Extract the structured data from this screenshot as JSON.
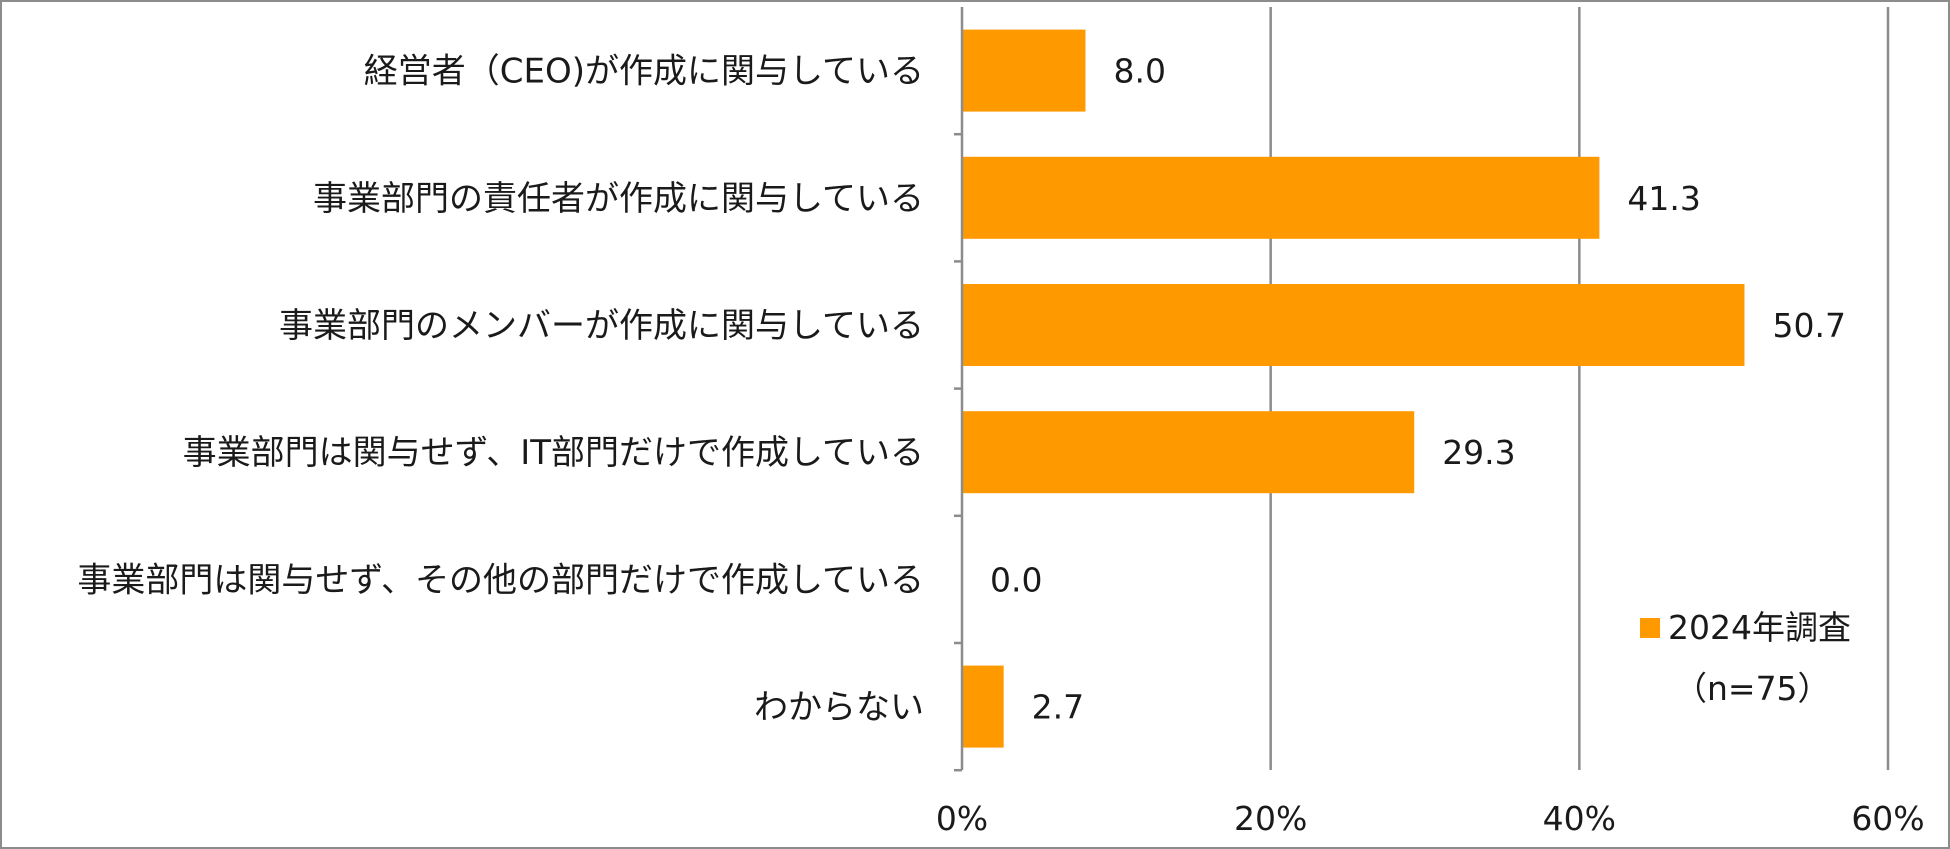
{
  "chart_data": {
    "type": "bar",
    "orientation": "horizontal",
    "categories": [
      "経営者（CEO)が作成に関与している",
      "事業部門の責任者が作成に関与している",
      "事業部門のメンバーが作成に関与している",
      "事業部門は関与せず、IT部門だけで作成している",
      "事業部門は関与せず、その他の部門だけで作成している",
      "わからない"
    ],
    "series": [
      {
        "name": "2024年調査",
        "values": [
          8.0,
          41.3,
          50.7,
          29.3,
          0.0,
          2.7
        ],
        "value_labels": [
          "8.0",
          "41.3",
          "50.7",
          "29.3",
          "0.0",
          "2.7"
        ]
      }
    ],
    "value_unit": "percent",
    "xlim": [
      0,
      60
    ],
    "x_ticks": [
      0,
      20,
      40,
      60
    ],
    "x_tick_labels": [
      "0%",
      "20%",
      "40%",
      "60%"
    ],
    "gridlines": "vertical",
    "legend": {
      "position": "lower-right",
      "entries": [
        "2024年調査"
      ],
      "note": "（n=75）"
    },
    "title": "",
    "xlabel": "",
    "ylabel": "",
    "colors": {
      "bar": "#FF9900",
      "grid": "#8c8c8c",
      "axis": "#8c8c8c",
      "frame": "#8c8c8c",
      "text": "#1a1a1a"
    }
  }
}
